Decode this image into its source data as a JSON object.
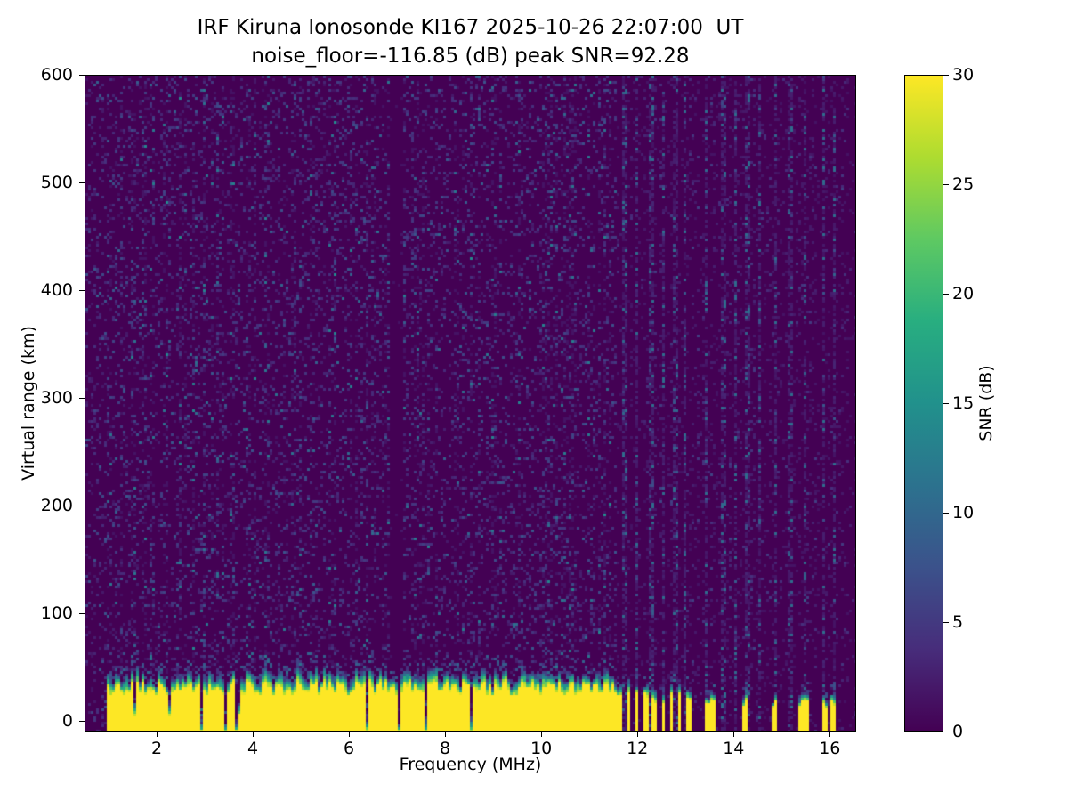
{
  "chart_data": {
    "type": "heatmap",
    "title": "IRF Kiruna Ionosonde KI167 2025-10-26 22:07:00  UT",
    "subtitle": "noise_floor=-116.85 (dB) peak SNR=92.28",
    "station": "IRF Kiruna Ionosonde KI167",
    "timestamp_ut": "2025-10-26 22:07:00 UT",
    "noise_floor_db": -116.85,
    "peak_snr_db": 92.28,
    "xlabel": "Frequency (MHz)",
    "ylabel": "Virtual range (km)",
    "xlim": [
      0.5,
      16.55
    ],
    "ylim": [
      -10,
      600
    ],
    "xticks": [
      2,
      4,
      6,
      8,
      10,
      12,
      14,
      16
    ],
    "yticks": [
      0,
      100,
      200,
      300,
      400,
      500,
      600
    ],
    "grid": false,
    "legend": "none",
    "colorbar": {
      "label": "SNR (dB)",
      "ticks": [
        0,
        5,
        10,
        15,
        20,
        25,
        30
      ],
      "vmin": 0,
      "vmax": 30
    },
    "colormap": {
      "name": "viridis",
      "stops": [
        "#440154",
        "#472d7b",
        "#3b528b",
        "#2c728e",
        "#21918c",
        "#28ae80",
        "#5ec962",
        "#addc30",
        "#fde725"
      ]
    },
    "features": {
      "background_snr_db": 0,
      "speckle_noise_max_db": 10,
      "ground_return": {
        "snr_db": 30,
        "freq_start_mhz": 0.95,
        "continuous_until_mhz": 11.55,
        "band_top_km_min": 22,
        "band_top_km_max": 36,
        "transition_thickness_km": 12,
        "striped": {
          "from_mhz": 11.6,
          "to_mhz": 13.15,
          "period_mhz": 0.18,
          "duty": 0.45
        },
        "sparse_stripes_mhz": [
          13.48,
          13.58,
          14.25,
          14.85,
          15.4,
          15.55,
          15.9,
          16.1
        ]
      },
      "rfi_noise_columns_mhz": [
        11.75,
        12.0,
        12.3,
        12.55,
        12.8,
        13.0,
        13.45,
        13.8,
        14.05,
        14.3,
        14.55,
        14.9,
        15.2,
        15.5,
        15.9,
        16.1
      ],
      "dark_columns_mhz": [
        6.95,
        7.05
      ]
    }
  }
}
